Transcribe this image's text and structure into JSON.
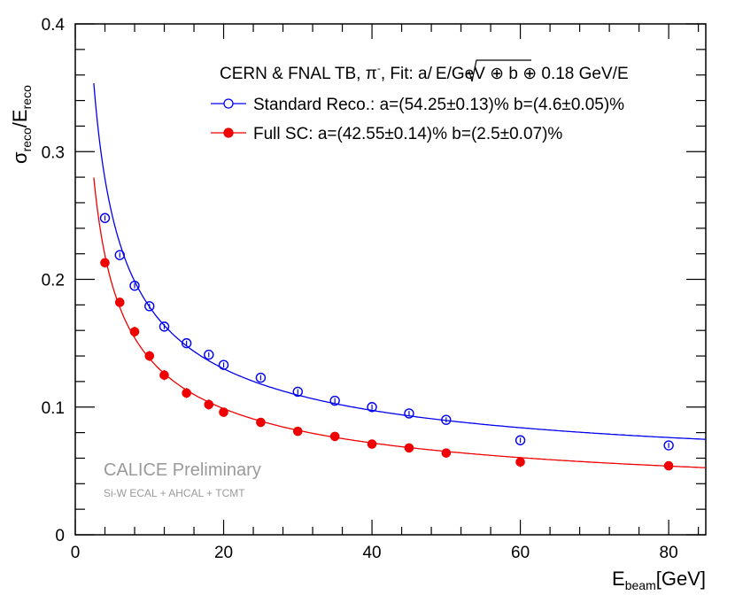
{
  "chart_data": {
    "type": "scatter",
    "xlabel_main": "E",
    "xlabel_sub": "beam",
    "xlabel_unit": "[GeV]",
    "ylabel_num_main": "σ",
    "ylabel_num_sub": "reco",
    "ylabel_den_main": "E",
    "ylabel_den_sub": "reco",
    "ylabel_slash": "/",
    "xlim": [
      0,
      85
    ],
    "ylim": [
      0,
      0.4
    ],
    "x_ticks": [
      0,
      20,
      40,
      60,
      80
    ],
    "x_tick_labels": [
      "0",
      "20",
      "40",
      "60",
      "80"
    ],
    "y_ticks": [
      0,
      0.1,
      0.2,
      0.3,
      0.4
    ],
    "y_tick_labels": [
      "0",
      "0.1",
      "0.2",
      "0.3",
      "0.4"
    ],
    "legend": {
      "header_main": "CERN & FNAL TB,  π",
      "header_sup": "-",
      "header_fit": ", Fit: a/",
      "header_sqrt": "E/GeV",
      "header_rest": " ⊕ b ⊕ 0.18 GeV/E",
      "placement": "top-right"
    },
    "noise_term": 0.18,
    "series": [
      {
        "name": "Standard Reco.: a=(54.25±0.13)%  b=(4.6±0.05)%",
        "color": "#0000ee",
        "marker": "open-circle",
        "fit": {
          "a": 0.5425,
          "b": 0.046
        },
        "x": [
          4,
          6,
          8,
          10,
          12,
          15,
          18,
          20,
          25,
          30,
          35,
          40,
          45,
          50,
          60,
          80
        ],
        "y": [
          0.248,
          0.219,
          0.195,
          0.179,
          0.163,
          0.15,
          0.141,
          0.133,
          0.123,
          0.112,
          0.105,
          0.1,
          0.095,
          0.09,
          0.074,
          0.07
        ],
        "err": [
          0.002,
          0.002,
          0.002,
          0.002,
          0.002,
          0.002,
          0.002,
          0.002,
          0.002,
          0.002,
          0.002,
          0.002,
          0.002,
          0.002,
          0.002,
          0.002
        ]
      },
      {
        "name": "Full SC: a=(42.55±0.14)%  b=(2.5±0.07)%",
        "color": "#ee0000",
        "marker": "filled-circle",
        "fit": {
          "a": 0.4255,
          "b": 0.025
        },
        "x": [
          4,
          6,
          8,
          10,
          12,
          15,
          18,
          20,
          25,
          30,
          35,
          40,
          45,
          50,
          60,
          80
        ],
        "y": [
          0.213,
          0.182,
          0.159,
          0.14,
          0.125,
          0.111,
          0.102,
          0.096,
          0.088,
          0.081,
          0.077,
          0.071,
          0.068,
          0.064,
          0.057,
          0.054
        ],
        "err": [
          0.002,
          0.002,
          0.004,
          0.004,
          0.004,
          0.004,
          0.004,
          0.002,
          0.002,
          0.002,
          0.002,
          0.002,
          0.002,
          0.002,
          0.004,
          0.002
        ]
      }
    ],
    "annotations": {
      "main": "CALICE Preliminary",
      "sub": "Si-W ECAL + AHCAL + TCMT"
    }
  }
}
